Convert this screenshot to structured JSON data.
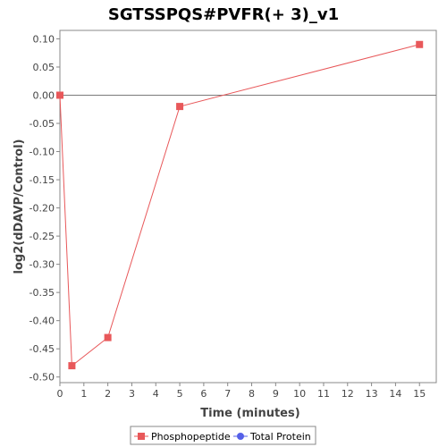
{
  "chart_data": {
    "type": "line",
    "title": "SGTSSPQS#PVFR(+ 3)_v1",
    "xlabel": "Time (minutes)",
    "ylabel": "log2(dDAVP/Control)",
    "xlim": [
      0,
      15.7
    ],
    "ylim": [
      -0.51,
      0.115
    ],
    "x_ticks": [
      "0",
      "1",
      "2",
      "3",
      "4",
      "5",
      "6",
      "7",
      "8",
      "9",
      "10",
      "11",
      "12",
      "13",
      "14",
      "15"
    ],
    "y_ticks": [
      "0.10",
      "0.05",
      "0.00",
      "-0.05",
      "-0.10",
      "-0.15",
      "-0.20",
      "-0.25",
      "-0.30",
      "-0.35",
      "-0.40",
      "-0.45",
      "-0.50"
    ],
    "zero_line": true,
    "grid": false,
    "legend_position": "bottom",
    "series": [
      {
        "name": "Phosphopeptide",
        "color": "#e8585a",
        "marker": "square",
        "x": [
          0,
          0.5,
          2,
          5,
          15
        ],
        "y": [
          0.0,
          -0.48,
          -0.43,
          -0.02,
          0.09
        ]
      },
      {
        "name": "Total Protein",
        "color": "#5560e8",
        "marker": "circle",
        "x": [],
        "y": []
      }
    ]
  }
}
